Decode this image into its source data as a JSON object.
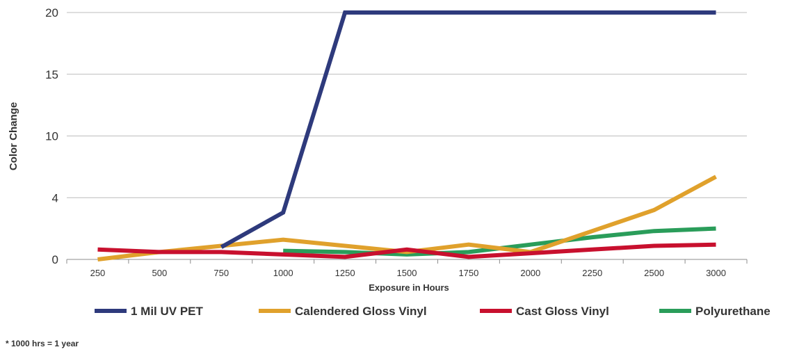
{
  "chart_data": {
    "type": "line",
    "title": "",
    "xlabel": "Exposure in Hours",
    "ylabel": "Color Change",
    "categories": [
      "250",
      "500",
      "750",
      "1000",
      "1250",
      "1500",
      "1750",
      "2000",
      "2250",
      "2500",
      "3000"
    ],
    "y_ticks": [
      "0",
      "4",
      "10",
      "15",
      "20"
    ],
    "ylim": [
      0,
      20
    ],
    "grid": "horizontal",
    "legend_position": "bottom",
    "series": [
      {
        "name": "1 Mil UV PET",
        "color": "#2e3a7c",
        "values": [
          null,
          null,
          1.0,
          3.8,
          20,
          20,
          20,
          20,
          20,
          20,
          20
        ]
      },
      {
        "name": "Calendered Gloss Vinyl",
        "color": "#e0a12c",
        "values": [
          0.0,
          0.6,
          1.1,
          1.6,
          1.1,
          0.6,
          1.2,
          0.6,
          2.3,
          4.0,
          6.7
        ]
      },
      {
        "name": "Cast Gloss Vinyl",
        "color": "#c8102e",
        "values": [
          0.8,
          0.6,
          0.6,
          0.4,
          0.2,
          0.8,
          0.2,
          0.5,
          0.8,
          1.1,
          1.2
        ]
      },
      {
        "name": "Polyurethane",
        "color": "#2a9d5a",
        "values": [
          null,
          null,
          null,
          0.7,
          0.6,
          0.4,
          0.6,
          1.2,
          1.8,
          2.3,
          2.5
        ]
      }
    ]
  },
  "footnote": "* 1000 hrs = 1 year"
}
